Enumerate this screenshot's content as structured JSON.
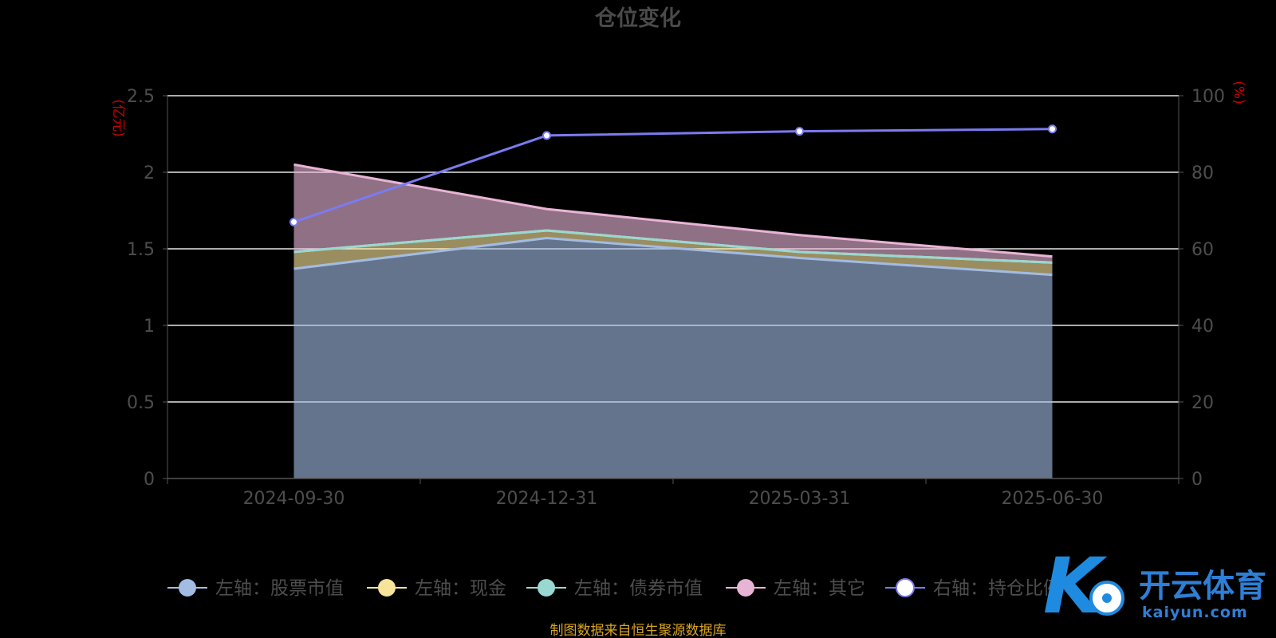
{
  "chart_data": {
    "type": "area",
    "title": "仓位变化",
    "left_axis": {
      "unit": "(亿元)",
      "range": [
        0,
        2.5
      ],
      "ticks": [
        "0",
        "0.5",
        "1",
        "1.5",
        "2",
        "2.5"
      ]
    },
    "right_axis": {
      "unit": "(%)",
      "range": [
        0,
        100
      ],
      "ticks": [
        "0",
        "20",
        "40",
        "60",
        "80",
        "100"
      ]
    },
    "categories": [
      "2024-09-30",
      "2024-12-31",
      "2025-03-31",
      "2025-06-30"
    ],
    "stacked": true,
    "grid": true,
    "legend_position": "bottom",
    "series": [
      {
        "name": "左轴：股票市值",
        "axis": "left",
        "type": "area",
        "values": [
          1.37,
          1.57,
          1.44,
          1.33
        ],
        "color": "#a3bce3"
      },
      {
        "name": "左轴：现金",
        "axis": "left",
        "type": "area",
        "values": [
          0.11,
          0.05,
          0.04,
          0.08
        ],
        "color": "#f8e39b"
      },
      {
        "name": "左轴：债券市值",
        "axis": "left",
        "type": "area",
        "values": [
          0,
          0,
          0,
          0
        ],
        "color": "#99d8d2"
      },
      {
        "name": "左轴：其它",
        "axis": "left",
        "type": "area",
        "values": [
          0.57,
          0.14,
          0.11,
          0.04
        ],
        "color": "#e8b4d5"
      },
      {
        "name": "右轴：持仓比例",
        "axis": "right",
        "type": "line",
        "values": [
          67,
          89.6,
          90.7,
          91.3
        ],
        "color": "#7b7bf0"
      }
    ]
  },
  "source_note": "制图数据来自恒生聚源数据库",
  "watermark": {
    "cn": "开云体育",
    "en": "kaiyun.com",
    "mark": "K"
  }
}
